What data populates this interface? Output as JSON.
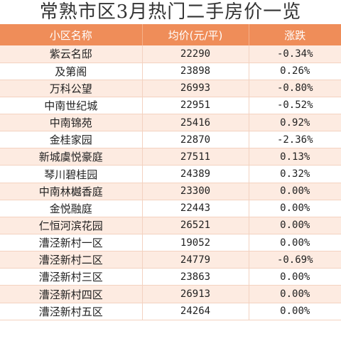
{
  "title": "常熟市区3月热门二手房价一览",
  "table": {
    "headers": [
      "小区名称",
      "均价(元/平)",
      "涨跌"
    ],
    "rows": [
      {
        "name": "紫云名邸",
        "price": "22290",
        "change": "-0.34%"
      },
      {
        "name": "及第阁",
        "price": "23898",
        "change": "0.26%"
      },
      {
        "name": "万科公望",
        "price": "26993",
        "change": "-0.80%"
      },
      {
        "name": "中南世纪城",
        "price": "22951",
        "change": "-0.52%"
      },
      {
        "name": "中南锦苑",
        "price": "25416",
        "change": "0.92%"
      },
      {
        "name": "金桂家园",
        "price": "22870",
        "change": "-2.36%"
      },
      {
        "name": "新城虞悦豪庭",
        "price": "27511",
        "change": "0.13%"
      },
      {
        "name": "琴川碧桂园",
        "price": "24389",
        "change": "0.32%"
      },
      {
        "name": "中南林樾香庭",
        "price": "23300",
        "change": "0.00%"
      },
      {
        "name": "金悦融庭",
        "price": "22443",
        "change": "0.00%"
      },
      {
        "name": "仁恒河滨花园",
        "price": "26521",
        "change": "0.00%"
      },
      {
        "name": "漕泾新村一区",
        "price": "19052",
        "change": "0.00%"
      },
      {
        "name": "漕泾新村二区",
        "price": "24779",
        "change": "-0.69%"
      },
      {
        "name": "漕泾新村三区",
        "price": "23863",
        "change": "0.00%"
      },
      {
        "name": "漕泾新村四区",
        "price": "26913",
        "change": "0.00%"
      },
      {
        "name": "漕泾新村五区",
        "price": "24264",
        "change": "0.00%"
      }
    ]
  }
}
